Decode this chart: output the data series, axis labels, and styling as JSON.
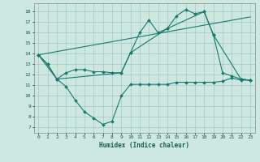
{
  "xlabel": "Humidex (Indice chaleur)",
  "background_color": "#cce8e0",
  "grid_color": "#aacccc",
  "line_color": "#1a7a6e",
  "xlim": [
    -0.5,
    23.5
  ],
  "ylim": [
    6.5,
    18.8
  ],
  "yticks": [
    7,
    8,
    9,
    10,
    11,
    12,
    13,
    14,
    15,
    16,
    17,
    18
  ],
  "xticks": [
    0,
    1,
    2,
    3,
    4,
    5,
    6,
    7,
    8,
    9,
    10,
    11,
    12,
    13,
    14,
    15,
    16,
    17,
    18,
    19,
    20,
    21,
    22,
    23
  ],
  "series1_x": [
    0,
    1,
    2,
    3,
    4,
    5,
    6,
    7,
    8,
    9,
    10,
    11,
    12,
    13,
    14,
    15,
    16,
    17,
    18,
    19,
    20,
    21,
    22,
    23
  ],
  "series1_y": [
    13.9,
    13.0,
    11.6,
    10.9,
    9.6,
    8.5,
    7.9,
    7.3,
    7.6,
    10.0,
    11.1,
    11.1,
    11.1,
    11.1,
    11.1,
    11.3,
    11.3,
    11.3,
    11.3,
    11.3,
    11.4,
    11.7,
    11.5,
    11.5
  ],
  "series2_x": [
    0,
    1,
    2,
    3,
    4,
    5,
    6,
    7,
    8,
    9,
    10,
    11,
    12,
    13,
    14,
    15,
    16,
    17,
    18,
    19,
    20,
    21,
    22,
    23
  ],
  "series2_y": [
    13.9,
    13.0,
    11.6,
    12.2,
    12.5,
    12.5,
    12.3,
    12.3,
    12.2,
    12.2,
    14.1,
    16.0,
    17.2,
    16.0,
    16.4,
    17.6,
    18.2,
    17.8,
    18.0,
    15.8,
    12.2,
    11.9,
    11.6,
    11.5
  ],
  "series3_x": [
    0,
    2,
    9,
    10,
    14,
    18,
    19,
    22,
    23
  ],
  "series3_y": [
    13.9,
    11.6,
    12.2,
    14.1,
    16.4,
    18.0,
    15.8,
    11.6,
    11.5
  ],
  "series4_x": [
    0,
    23
  ],
  "series4_y": [
    13.9,
    17.5
  ]
}
